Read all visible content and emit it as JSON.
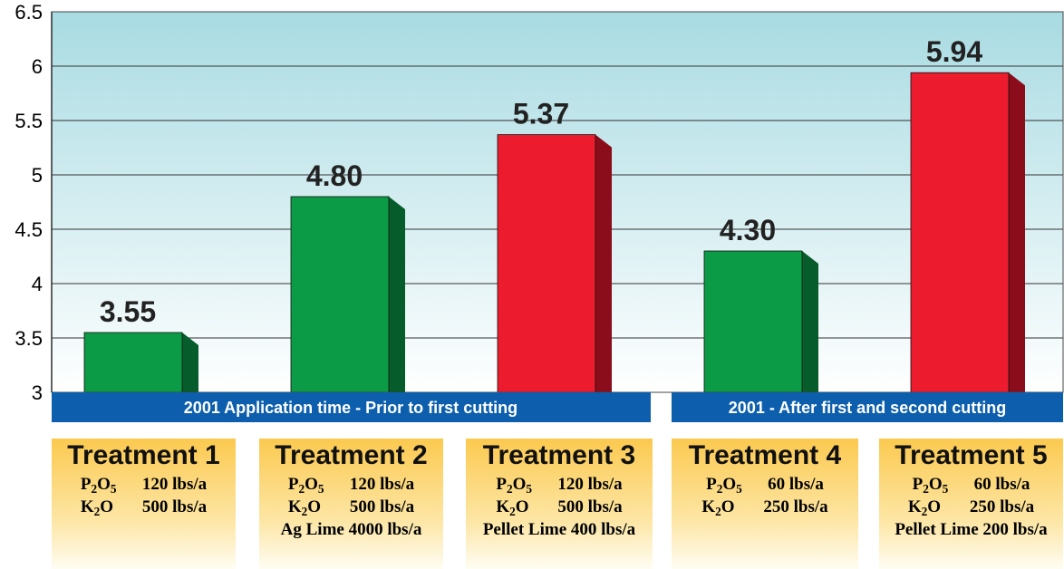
{
  "chart_data": {
    "type": "bar",
    "categories": [
      "Treatment 1",
      "Treatment 2",
      "Treatment 3",
      "Treatment 4",
      "Treatment 5"
    ],
    "values": [
      3.55,
      4.8,
      5.37,
      4.3,
      5.94
    ],
    "value_labels": [
      "3.55",
      "4.80",
      "5.37",
      "4.30",
      "5.94"
    ],
    "bar_colors": [
      "#0b9a45",
      "#0b9a45",
      "#ec1c2e",
      "#0b9a45",
      "#ec1c2e"
    ],
    "bar_side_colors": [
      "#065c2a",
      "#065c2a",
      "#8b0d1b",
      "#065c2a",
      "#8b0d1b"
    ],
    "ylim": [
      3,
      6.5
    ],
    "yticks": [
      "3",
      "3.5",
      "4",
      "4.5",
      "5",
      "5.5",
      "6",
      "6.5"
    ],
    "ytick_values": [
      3,
      3.5,
      4,
      4.5,
      5,
      5.5,
      6,
      6.5
    ],
    "grid": true,
    "background_gradient": [
      "#a8dbe2",
      "#ffffff"
    ],
    "group_bands": [
      {
        "label": "2001 Application time - Prior to first cutting",
        "color": "#0d5fad"
      },
      {
        "label": "2001 - After first and second cutting",
        "color": "#0d5fad"
      }
    ]
  },
  "treatments": [
    {
      "title": "Treatment 1",
      "p2o5": {
        "chem": "P",
        "s1": "2",
        "mid": "O",
        "s2": "5",
        "value": "120 lbs/a"
      },
      "k2o": {
        "chem": "K",
        "s1": "2",
        "mid": "O",
        "value": "500 lbs/a"
      },
      "extra": ""
    },
    {
      "title": "Treatment 2",
      "p2o5": {
        "chem": "P",
        "s1": "2",
        "mid": "O",
        "s2": "5",
        "value": "120 lbs/a"
      },
      "k2o": {
        "chem": "K",
        "s1": "2",
        "mid": "O",
        "value": "500 lbs/a"
      },
      "extra": "Ag Lime 4000 lbs/a"
    },
    {
      "title": "Treatment 3",
      "p2o5": {
        "chem": "P",
        "s1": "2",
        "mid": "O",
        "s2": "5",
        "value": "120 lbs/a"
      },
      "k2o": {
        "chem": "K",
        "s1": "2",
        "mid": "O",
        "value": "500 lbs/a"
      },
      "extra": "Pellet Lime 400 lbs/a"
    },
    {
      "title": "Treatment 4",
      "p2o5": {
        "chem": "P",
        "s1": "2",
        "mid": "O",
        "s2": "5",
        "value": "60 lbs/a"
      },
      "k2o": {
        "chem": "K",
        "s1": "2",
        "mid": "O",
        "value": "250 lbs/a"
      },
      "extra": ""
    },
    {
      "title": "Treatment 5",
      "p2o5": {
        "chem": "P",
        "s1": "2",
        "mid": "O",
        "s2": "5",
        "value": "60 lbs/a"
      },
      "k2o": {
        "chem": "K",
        "s1": "2",
        "mid": "O",
        "value": "250 lbs/a"
      },
      "extra": "Pellet Lime 200 lbs/a"
    }
  ]
}
